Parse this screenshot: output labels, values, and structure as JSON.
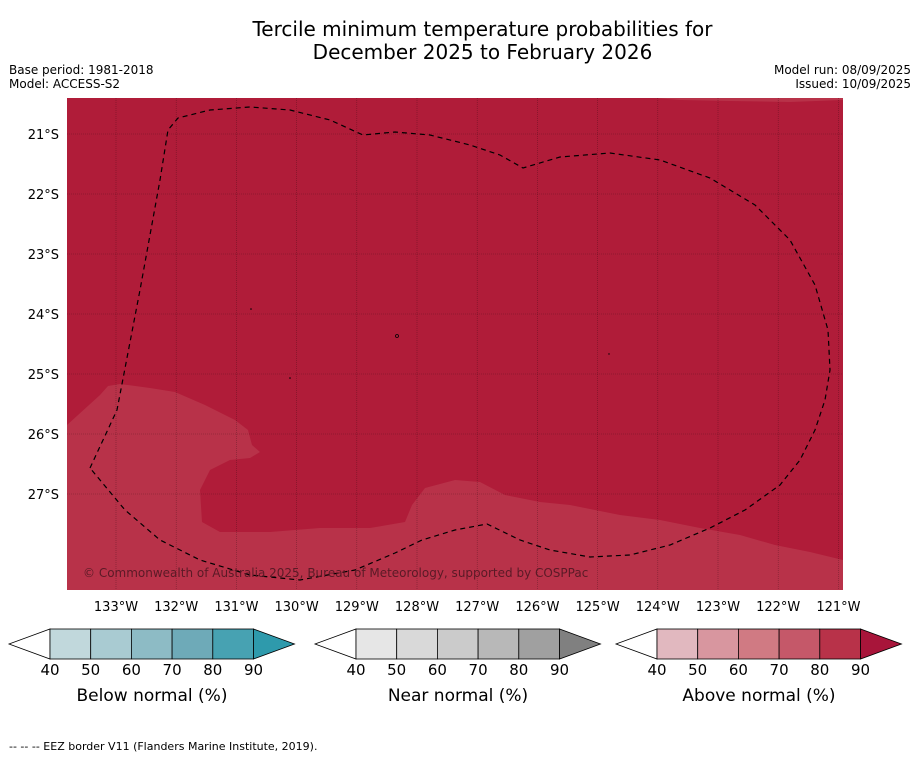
{
  "title": {
    "line1": "Tercile minimum temperature probabilities for",
    "line2": "December 2025 to February 2026"
  },
  "meta": {
    "base_period": "Base period: 1981-2018",
    "model": "Model: ACCESS-S2",
    "model_run": "Model run: 08/09/2025",
    "issued": "Issued: 10/09/2025"
  },
  "map": {
    "lon_range": [
      133.8,
      120.9
    ],
    "lat_range": [
      20.4,
      28.6
    ],
    "lat_ticks": [
      "21°S",
      "22°S",
      "23°S",
      "24°S",
      "25°S",
      "26°S",
      "27°S"
    ],
    "lon_ticks": [
      "133°W",
      "132°W",
      "131°W",
      "130°W",
      "129°W",
      "128°W",
      "127°W",
      "126°W",
      "125°W",
      "124°W",
      "123°W",
      "122°W",
      "121°W"
    ],
    "colors": {
      "above_80": "#b01c39",
      "above_70": "#b83249",
      "border": "#000000"
    },
    "copyright": "© Commonwealth of Australia 2025, Bureau of Meteorology, supported by COSPPac"
  },
  "colorbars": [
    {
      "label": "Below normal (%)",
      "ticks": [
        "40",
        "50",
        "60",
        "70",
        "80",
        "90"
      ],
      "colors": [
        "#ffffff",
        "#c1d8dc",
        "#a9cbd2",
        "#8dbbc5",
        "#6eaab8",
        "#47a2b2",
        "#2e9aac"
      ]
    },
    {
      "label": "Near normal (%)",
      "ticks": [
        "40",
        "50",
        "60",
        "70",
        "80",
        "90"
      ],
      "colors": [
        "#ffffff",
        "#e6e6e6",
        "#d9d9d9",
        "#cbcbcb",
        "#b8b8b8",
        "#a0a0a0",
        "#808080"
      ]
    },
    {
      "label": "Above normal (%)",
      "ticks": [
        "40",
        "50",
        "60",
        "70",
        "80",
        "90"
      ],
      "colors": [
        "#ffffff",
        "#e1b8bf",
        "#d8969f",
        "#d07a83",
        "#c55869",
        "#b83249",
        "#a8153a"
      ]
    }
  ],
  "footnote": "--  --  -- EEZ border V11 (Flanders Marine Institute, 2019)."
}
